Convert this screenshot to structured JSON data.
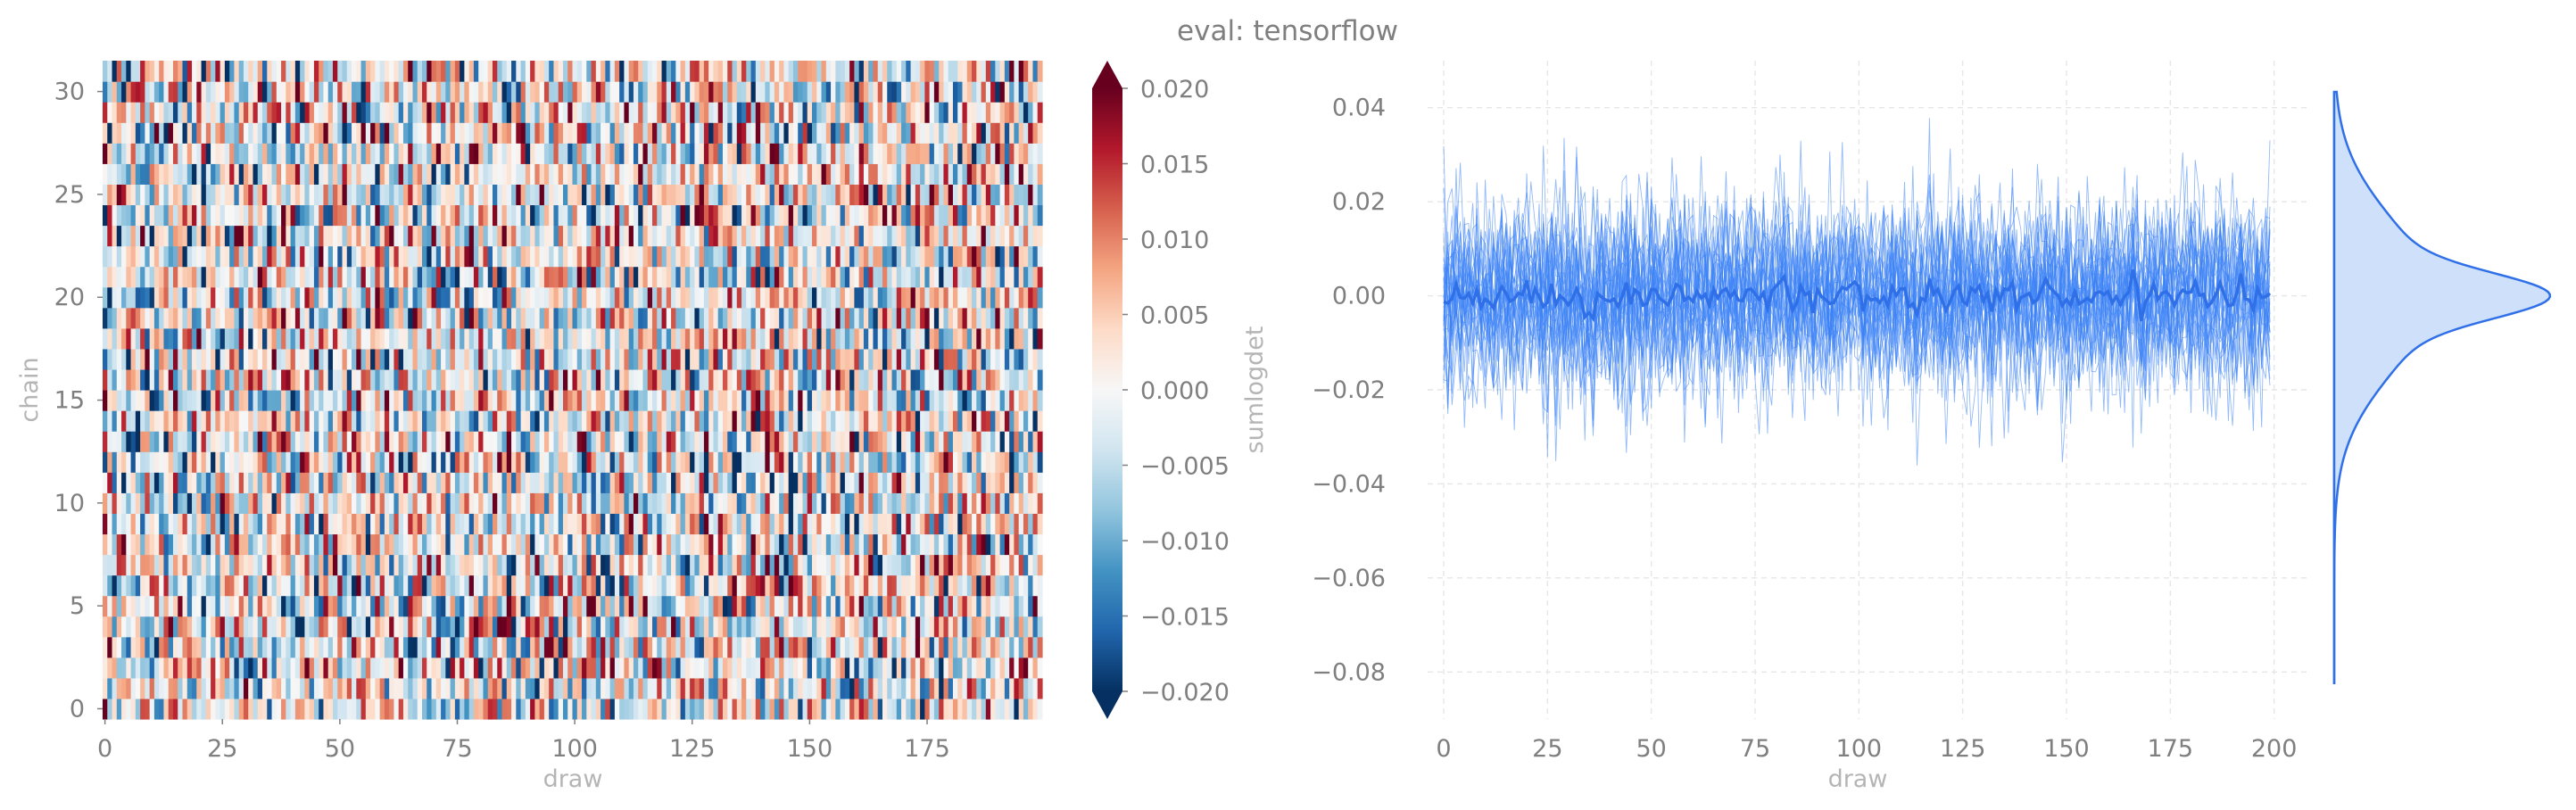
{
  "figure": {
    "title": "eval: tensorflow"
  },
  "chart_data": [
    {
      "type": "heatmap",
      "xlabel": "draw",
      "ylabel": "chain",
      "x_range": [
        0,
        199
      ],
      "y_range": [
        0,
        31
      ],
      "n_draws": 200,
      "n_chains": 32,
      "x_ticks": [
        "0",
        "25",
        "50",
        "75",
        "100",
        "125",
        "150",
        "175"
      ],
      "y_ticks": [
        "0",
        "5",
        "10",
        "15",
        "20",
        "25",
        "30"
      ],
      "colorbar": {
        "label": "sumlogdet",
        "range": [
          -0.02,
          0.02
        ],
        "colormap": "RdBu_r",
        "extend": "both",
        "ticks": [
          "0.020",
          "0.015",
          "0.010",
          "0.005",
          "0.000",
          "−0.005",
          "−0.010",
          "−0.015",
          "−0.020"
        ],
        "colors": {
          "low": "#053061",
          "mid": "#f7f7f7",
          "high": "#67001f"
        }
      },
      "value_distribution": {
        "mean": 0.0,
        "std": 0.01
      }
    },
    {
      "type": "line",
      "xlabel": "draw",
      "ylabel": "",
      "xlim": [
        0,
        199
      ],
      "ylim": [
        -0.09,
        0.05
      ],
      "x_ticks": [
        "0",
        "25",
        "50",
        "75",
        "100",
        "125",
        "150",
        "175",
        "200"
      ],
      "y_ticks": [
        "0.04",
        "0.02",
        "0.00",
        "−0.02",
        "−0.04",
        "−0.06",
        "−0.08"
      ],
      "n_traces": 32,
      "trace_std": 0.01,
      "mean": 0.0,
      "observed_max": 0.04,
      "observed_min": -0.048,
      "grid": true,
      "line_color": "#3b82f6",
      "mean_color": "#2f6fe8",
      "marginal": {
        "type": "kde",
        "center": 0.0,
        "fill": "#cfe0fb",
        "edge": "#2f6fe8"
      }
    }
  ]
}
